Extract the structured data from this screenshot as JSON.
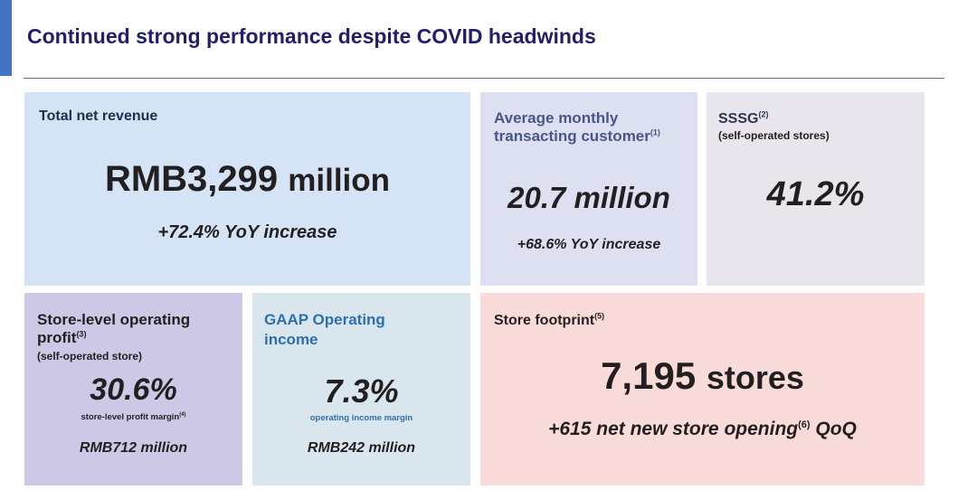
{
  "slide": {
    "title": "Continued strong performance despite COVID headwinds"
  },
  "revenue": {
    "label": "Total net revenue",
    "value_main": "RMB3,299",
    "value_unit": "million",
    "growth": "+72.4% YoY increase"
  },
  "monthly_customers": {
    "label_line1": "Average monthly",
    "label_line2": "transacting customer",
    "label_sup": "(1)",
    "value": "20.7 million",
    "growth": "+68.6% YoY increase"
  },
  "sssg": {
    "label": "SSSG",
    "label_sup": "(2)",
    "sublabel": "(self-operated stores)",
    "value": "41.2%"
  },
  "store_profit": {
    "label_line1": "Store-level operating",
    "label_line2": "profit",
    "label_sup": "(3)",
    "sublabel": "(self-operated store)",
    "value": "30.6%",
    "caption": "store-level profit margin",
    "caption_sup": "(4)",
    "amount": "RMB712 million"
  },
  "gaap_income": {
    "label_line1": "GAAP Operating",
    "label_line2": "income",
    "value": "7.3%",
    "caption": "operating income margin",
    "amount": "RMB242 million"
  },
  "store_footprint": {
    "label": "Store footprint",
    "label_sup": "(5)",
    "value_main": "7,195",
    "value_unit": "stores",
    "growth_main": "+615 net new store opening",
    "growth_sup": "(6)",
    "growth_tail": "QoQ"
  },
  "colors": {
    "title": "#1f1f6b",
    "accent_bar": "#4472c4",
    "revenue_bg": "#d4e3f5",
    "customers_bg": "#dce0f0",
    "sssg_bg": "#e8e6ec",
    "store_profit_bg": "#cdc8e6",
    "gaap_bg": "#dae6ee",
    "footprint_bg": "#f9dcd9"
  }
}
